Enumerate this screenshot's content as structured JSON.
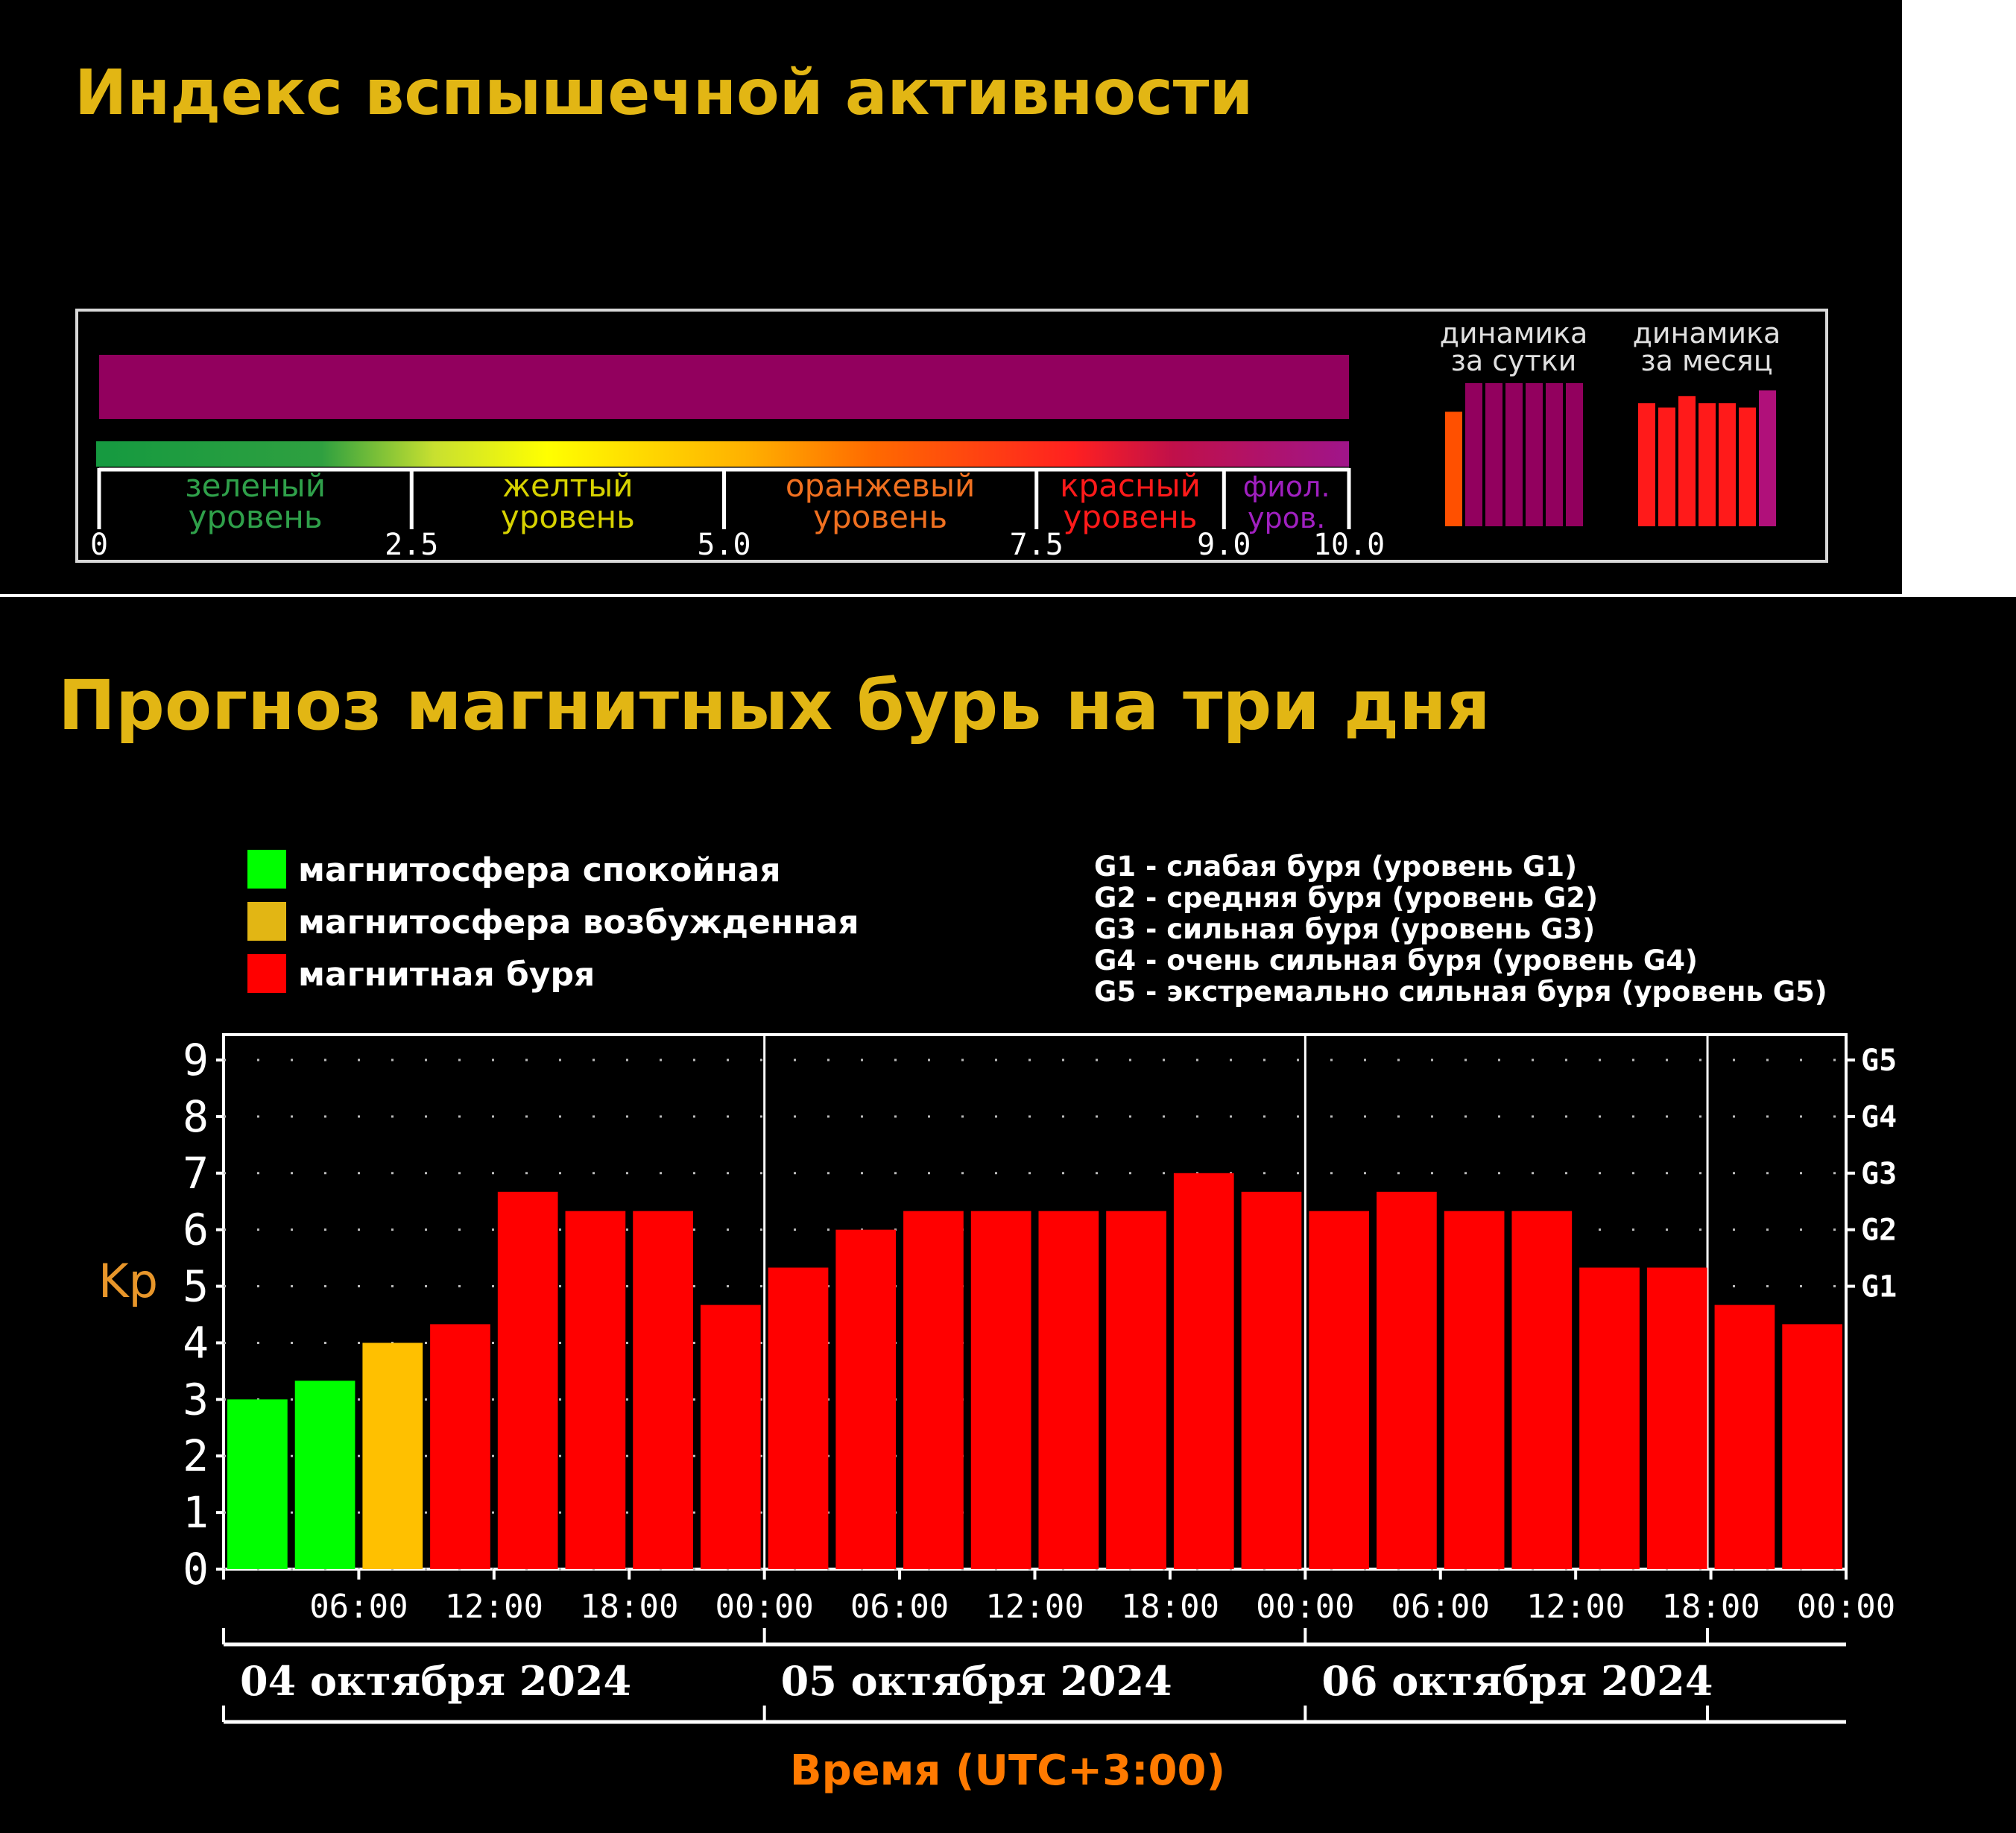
{
  "flare_panel": {
    "title": "Индекс вспышечной активности",
    "current_index": 10.0,
    "bar_color": "#92005e",
    "levels": [
      {
        "line1": "зеленый",
        "line2": "уровень",
        "color": "#2fa04a"
      },
      {
        "line1": "желтый",
        "line2": "уровень",
        "color": "#d7d200"
      },
      {
        "line1": "оранжевый",
        "line2": "уровень",
        "color": "#f07020"
      },
      {
        "line1": "красный",
        "line2": "уровень",
        "color": "#ff1a1a"
      },
      {
        "line1": "фиол.",
        "line2": "уров.",
        "color": "#a020c0"
      }
    ],
    "scale_ticks": [
      "0",
      "2.5",
      "5.0",
      "7.5",
      "9.0",
      "10.0"
    ],
    "dynamics_day": {
      "label_line1": "динамика",
      "label_line2": "за сутки",
      "colors": [
        "#ff5000",
        "#92005e",
        "#92005e",
        "#92005e",
        "#92005e",
        "#92005e",
        "#92005e"
      ],
      "heights": [
        0.8,
        1.0,
        1.0,
        1.0,
        1.0,
        1.0,
        1.0
      ]
    },
    "dynamics_month": {
      "label_line1": "динамика",
      "label_line2": "за месяц",
      "colors": [
        "#ff1a1a",
        "#ff1a1a",
        "#ff1a1a",
        "#ff1a1a",
        "#ff1a1a",
        "#ff1a1a",
        "#b0107a"
      ],
      "heights": [
        0.86,
        0.83,
        0.91,
        0.86,
        0.86,
        0.83,
        0.95
      ]
    }
  },
  "storm_panel": {
    "title": "Прогноз магнитных бурь на три дня",
    "legend": [
      {
        "label": "магнитосфера спокойная",
        "color": "#00ff00"
      },
      {
        "label": "магнитосфера возбужденная",
        "color": "#e2b614"
      },
      {
        "label": "магнитная буря",
        "color": "#ff0000"
      }
    ],
    "g_legend": [
      "G1 - слабая буря (уровень G1)",
      "G2 - средняя буря (уровень G2)",
      "G3 - сильная буря (уровень G3)",
      "G4 - очень сильная буря (уровень G4)",
      "G5 - экстремально сильная буря (уровень G5)"
    ]
  },
  "chart_data": {
    "type": "bar",
    "ylabel": "Kp",
    "xlabel": "Время (UTC+3:00)",
    "ylim": [
      0,
      9
    ],
    "yticks": [
      "0",
      "1",
      "2",
      "3",
      "4",
      "5",
      "6",
      "7",
      "8",
      "9"
    ],
    "right_ticks": [
      {
        "value": 5,
        "label": "G1"
      },
      {
        "value": 6,
        "label": "G2"
      },
      {
        "value": 7,
        "label": "G3"
      },
      {
        "value": 8,
        "label": "G4"
      },
      {
        "value": 9,
        "label": "G5"
      }
    ],
    "time_ticks": [
      "06:00",
      "12:00",
      "18:00",
      "00:00",
      "06:00",
      "12:00",
      "18:00",
      "00:00",
      "06:00",
      "12:00",
      "18:00",
      "00:00"
    ],
    "days": [
      "04 октября 2024",
      "05 октября 2024",
      "06 октября 2024"
    ],
    "values": [
      3.0,
      3.33,
      4.0,
      4.33,
      6.67,
      6.33,
      6.33,
      4.67,
      5.33,
      6.0,
      6.33,
      6.33,
      6.33,
      6.33,
      7.0,
      6.67,
      6.33,
      6.67,
      6.33,
      6.33,
      5.33,
      5.33,
      4.67,
      4.33
    ],
    "colors": [
      "#00ff00",
      "#00ff00",
      "#ffc000",
      "#ff0000",
      "#ff0000",
      "#ff0000",
      "#ff0000",
      "#ff0000",
      "#ff0000",
      "#ff0000",
      "#ff0000",
      "#ff0000",
      "#ff0000",
      "#ff0000",
      "#ff0000",
      "#ff0000",
      "#ff0000",
      "#ff0000",
      "#ff0000",
      "#ff0000",
      "#ff0000",
      "#ff0000",
      "#ff0000",
      "#ff0000"
    ],
    "grid": "dotted"
  }
}
